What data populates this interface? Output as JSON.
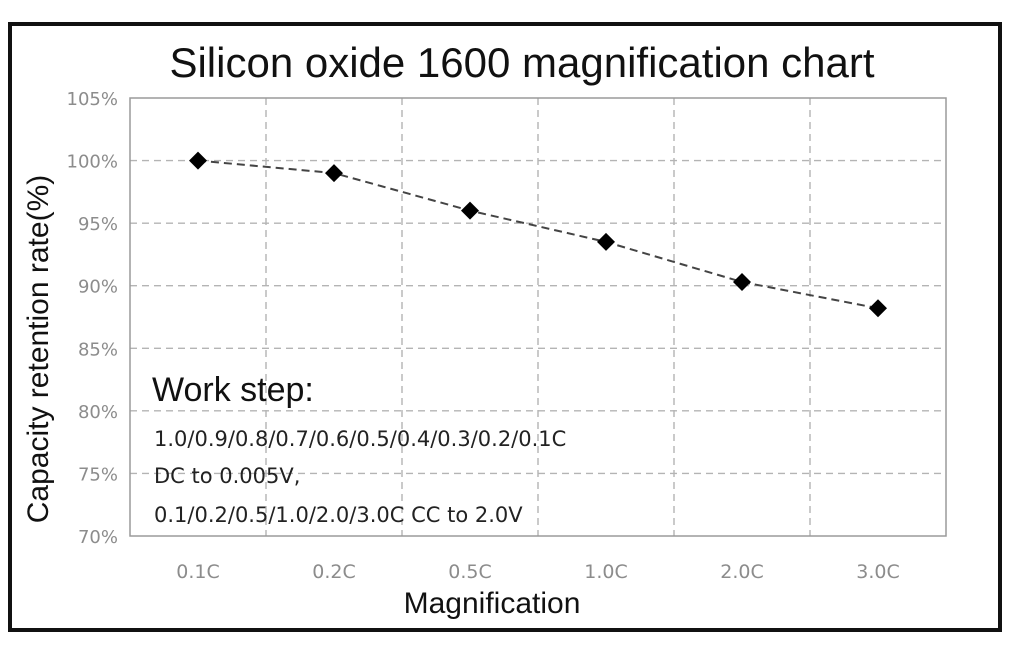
{
  "chart_data": {
    "type": "line",
    "title": "Silicon oxide 1600 magnification chart",
    "xlabel": "Magnification",
    "ylabel": "Capacity retention rate(%)",
    "categories": [
      "0.1C",
      "0.2C",
      "0.5C",
      "1.0C",
      "2.0C",
      "3.0C"
    ],
    "series": [
      {
        "values": [
          100,
          99,
          96,
          93.5,
          90.3,
          88.2
        ]
      }
    ],
    "ylim": [
      70,
      105
    ],
    "yticks": [
      70,
      75,
      80,
      85,
      90,
      95,
      100,
      105
    ],
    "ytick_labels": [
      "70%",
      "75%",
      "80%",
      "85%",
      "90%",
      "95%",
      "100%",
      "105%"
    ],
    "grid": true,
    "marker": "diamond",
    "line_style": "dashed",
    "series_color": "#000000",
    "annotation": {
      "heading": "Work step:",
      "lines": [
        "1.0/0.9/0.8/0.7/0.6/0.5/0.4/0.3/0.2/0.1C",
        "DC to 0.005V,",
        "0.1/0.2/0.5/1.0/2.0/3.0C CC to 2.0V"
      ]
    }
  }
}
